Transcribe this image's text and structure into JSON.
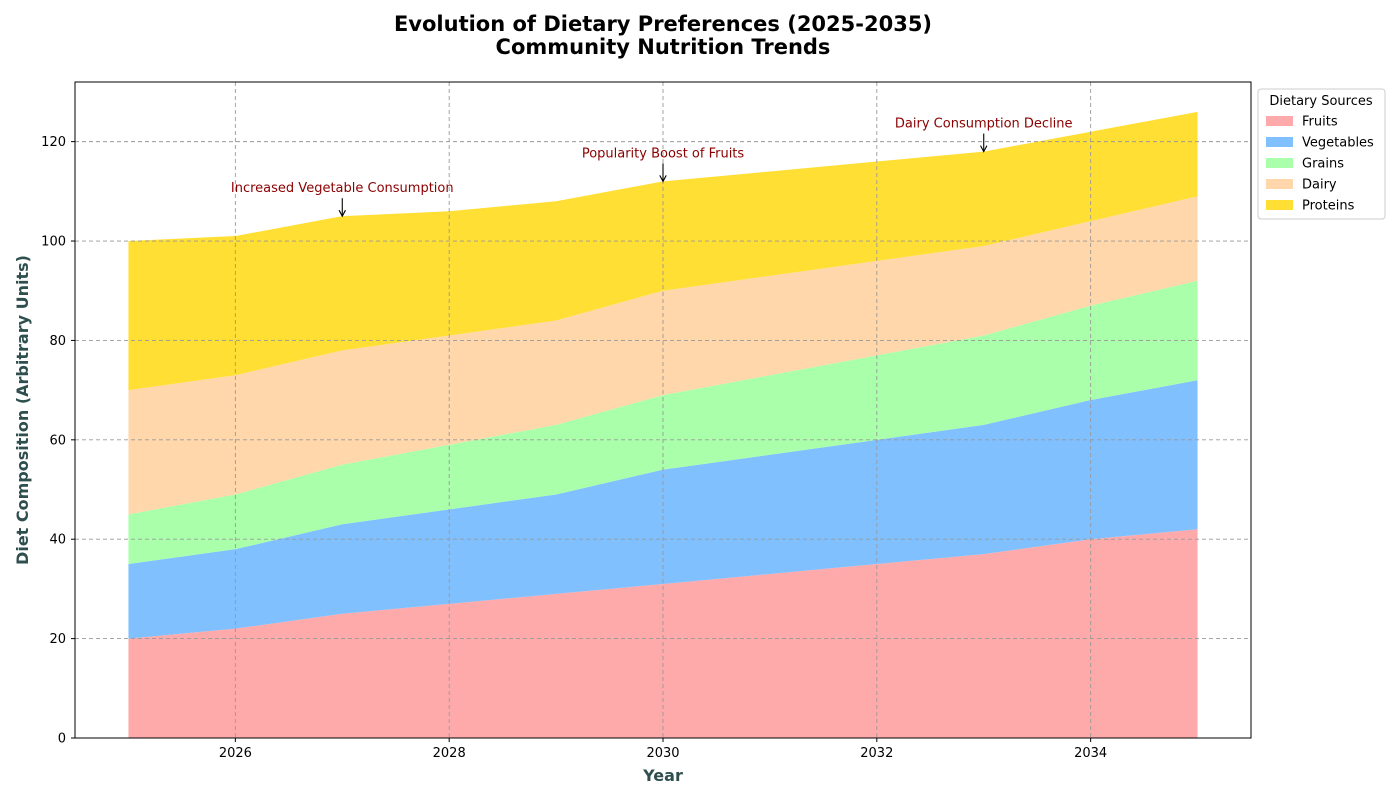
{
  "chart_data": {
    "type": "area",
    "stacked": true,
    "title": "Evolution of Dietary Preferences (2025-2035)",
    "subtitle": "Community Nutrition Trends",
    "xlabel": "Year",
    "ylabel": "Diet Composition (Arbitrary Units)",
    "xlim": [
      2024.5,
      2035.5
    ],
    "ylim": [
      0,
      132
    ],
    "x_ticks": [
      2026,
      2028,
      2030,
      2032,
      2034
    ],
    "y_ticks": [
      0,
      20,
      40,
      60,
      80,
      100,
      120
    ],
    "grid": true,
    "x": [
      2025,
      2026,
      2027,
      2028,
      2029,
      2030,
      2031,
      2032,
      2033,
      2034,
      2035
    ],
    "legend": {
      "title": "Dietary Sources",
      "placement": "outside-upper-right"
    },
    "series": [
      {
        "name": "Fruits",
        "color": "#FFAAAA",
        "values": [
          20,
          22,
          25,
          27,
          29,
          31,
          33,
          35,
          37,
          40,
          42
        ]
      },
      {
        "name": "Vegetables",
        "color": "#80C0FF",
        "values": [
          15,
          16,
          18,
          19,
          20,
          23,
          24,
          25,
          26,
          28,
          30
        ]
      },
      {
        "name": "Grains",
        "color": "#AAFFAA",
        "values": [
          10,
          11,
          12,
          13,
          14,
          15,
          16,
          17,
          18,
          19,
          20
        ]
      },
      {
        "name": "Dairy",
        "color": "#FFD7AA",
        "values": [
          25,
          24,
          23,
          22,
          21,
          21,
          20,
          19,
          18,
          17,
          17
        ]
      },
      {
        "name": "Proteins",
        "color": "#FFDF33",
        "values": [
          30,
          28,
          27,
          25,
          24,
          22,
          21,
          20,
          19,
          18,
          17
        ]
      }
    ],
    "annotations": [
      {
        "text": "Increased Vegetable Consumption",
        "x": 2027,
        "y": 105
      },
      {
        "text": "Popularity Boost of Fruits",
        "x": 2030,
        "y": 112
      },
      {
        "text": "Dairy Consumption Decline",
        "x": 2033,
        "y": 118
      }
    ],
    "annotation_color": "#8B0000",
    "axis_label_color": "#2F4F4F",
    "grid_color": "#999999"
  }
}
